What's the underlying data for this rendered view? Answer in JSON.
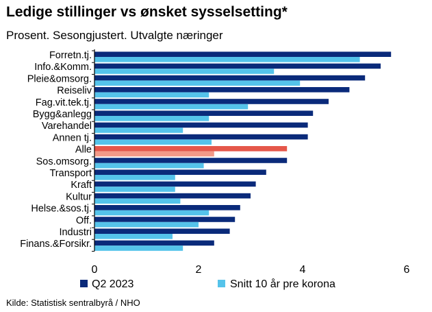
{
  "chart_data": {
    "type": "bar",
    "orientation": "horizontal",
    "title": "Ledige stillinger vs ønsket sysselsetting*",
    "subtitle": "Prosent. Sesongjustert. Utvalgte næringer",
    "categories": [
      "Forretn.tj.",
      "Info.&Komm.",
      "Pleie&omsorg.",
      "Reiseliv",
      "Fag.vit.tek.tj.",
      "Bygg&anlegg",
      "Varehandel",
      "Annen tj.",
      "Alle",
      "Sos.omsorg.",
      "Transport",
      "Kraft",
      "Kultur",
      "Helse.&sos.tj.",
      "Off.",
      "Industri",
      "Finans.&Forsikr."
    ],
    "series": [
      {
        "name": "Q2 2023",
        "values": [
          5.7,
          5.5,
          5.2,
          4.9,
          4.5,
          4.2,
          4.1,
          4.1,
          3.7,
          3.7,
          3.3,
          3.1,
          3.0,
          2.8,
          2.7,
          2.6,
          2.3
        ]
      },
      {
        "name": "Snitt 10 år pre korona",
        "values": [
          5.1,
          3.45,
          3.95,
          2.2,
          2.95,
          2.2,
          1.7,
          2.25,
          2.3,
          2.1,
          1.55,
          1.55,
          1.65,
          2.2,
          2.0,
          1.5,
          1.7
        ]
      }
    ],
    "highlight_category": "Alle",
    "xlim": [
      0,
      6
    ],
    "xticks": [
      0,
      2,
      4,
      6
    ],
    "xlabel": "",
    "ylabel": "",
    "grid": false,
    "legend_position": "bottom-left",
    "colors": {
      "q2": "#0a2a7a",
      "avg": "#55c3ea",
      "highlight_q2": "#e5574a",
      "highlight_avg": "#f39a88"
    }
  },
  "source": "Kilde: Statistisk sentralbyrå / NHO"
}
